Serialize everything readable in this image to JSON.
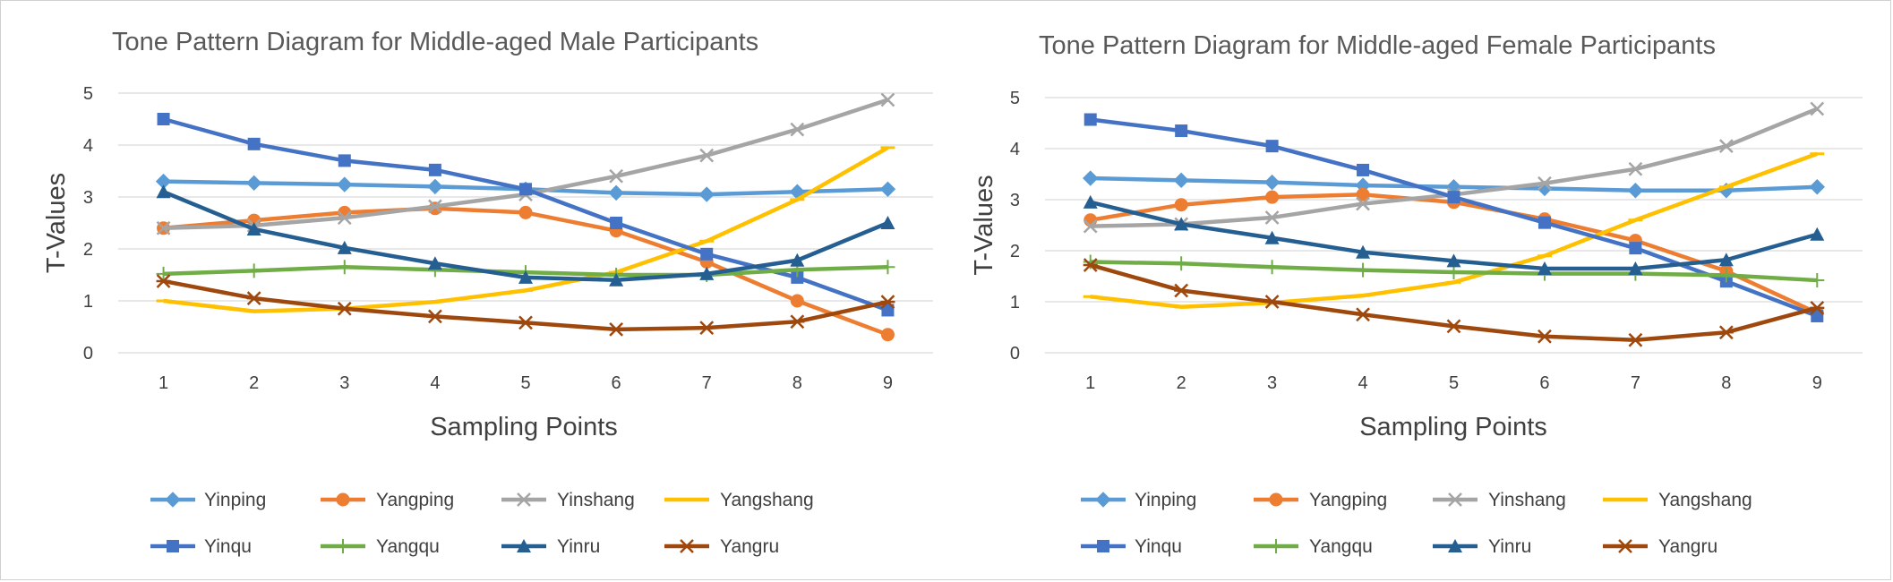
{
  "chart_data": [
    {
      "type": "line",
      "title": "Tone Pattern Diagram for Middle-aged Male  Participants",
      "xlabel": "Sampling Points",
      "ylabel": "T-Values",
      "x": [
        "1",
        "2",
        "3",
        "4",
        "5",
        "6",
        "7",
        "8",
        "9"
      ],
      "ylim": [
        0,
        5
      ],
      "yticks": [
        "0",
        "1",
        "2",
        "3",
        "4",
        "5"
      ],
      "grid": true,
      "legend": "bottom",
      "series": [
        {
          "name": "Yinping",
          "color": "#5b9bd5",
          "marker": "diamond",
          "values": [
            3.3,
            3.27,
            3.24,
            3.2,
            3.15,
            3.08,
            3.05,
            3.1,
            3.15
          ]
        },
        {
          "name": "Yangping",
          "color": "#ed7d31",
          "marker": "circle",
          "values": [
            2.4,
            2.55,
            2.7,
            2.78,
            2.7,
            2.35,
            1.75,
            1.0,
            0.35
          ]
        },
        {
          "name": "Yinshang",
          "color": "#a5a5a5",
          "marker": "x",
          "values": [
            2.4,
            2.45,
            2.6,
            2.82,
            3.05,
            3.4,
            3.8,
            4.3,
            4.87
          ]
        },
        {
          "name": "Yangshang",
          "color": "#ffc000",
          "marker": "dash",
          "values": [
            1.0,
            0.8,
            0.85,
            0.98,
            1.2,
            1.55,
            2.15,
            2.95,
            3.95
          ]
        },
        {
          "name": "Yinqu",
          "color": "#4472c4",
          "marker": "square",
          "values": [
            4.5,
            4.02,
            3.7,
            3.52,
            3.15,
            2.5,
            1.9,
            1.45,
            0.82
          ]
        },
        {
          "name": "Yangqu",
          "color": "#70ad47",
          "marker": "plus",
          "values": [
            1.52,
            1.58,
            1.65,
            1.6,
            1.55,
            1.5,
            1.5,
            1.6,
            1.65
          ]
        },
        {
          "name": "Yinru",
          "color": "#255e91",
          "marker": "triangle",
          "values": [
            3.1,
            2.38,
            2.02,
            1.72,
            1.45,
            1.4,
            1.52,
            1.78,
            2.5
          ]
        },
        {
          "name": "Yangru",
          "color": "#9e480e",
          "marker": "star",
          "values": [
            1.38,
            1.05,
            0.85,
            0.7,
            0.58,
            0.45,
            0.48,
            0.6,
            0.98
          ]
        }
      ]
    },
    {
      "type": "line",
      "title": "Tone Pattern Diagram for Middle-aged  Female  Participants",
      "xlabel": "Sampling Points",
      "ylabel": "T-Values",
      "x": [
        "1",
        "2",
        "3",
        "4",
        "5",
        "6",
        "7",
        "8",
        "9"
      ],
      "ylim": [
        0,
        5
      ],
      "yticks": [
        "0",
        "1",
        "2",
        "3",
        "4",
        "5"
      ],
      "grid": true,
      "legend": "bottom",
      "series": [
        {
          "name": "Yinping",
          "color": "#5b9bd5",
          "marker": "diamond",
          "values": [
            3.42,
            3.38,
            3.34,
            3.28,
            3.25,
            3.22,
            3.18,
            3.18,
            3.25
          ]
        },
        {
          "name": "Yangping",
          "color": "#ed7d31",
          "marker": "circle",
          "values": [
            2.6,
            2.9,
            3.05,
            3.1,
            2.95,
            2.62,
            2.2,
            1.6,
            0.78
          ]
        },
        {
          "name": "Yinshang",
          "color": "#a5a5a5",
          "marker": "x",
          "values": [
            2.48,
            2.52,
            2.65,
            2.92,
            3.1,
            3.32,
            3.6,
            4.05,
            4.78
          ]
        },
        {
          "name": "Yangshang",
          "color": "#ffc000",
          "marker": "dash",
          "values": [
            1.1,
            0.9,
            0.98,
            1.12,
            1.38,
            1.9,
            2.6,
            3.25,
            3.9
          ]
        },
        {
          "name": "Yinqu",
          "color": "#4472c4",
          "marker": "square",
          "values": [
            4.57,
            4.35,
            4.05,
            3.58,
            3.05,
            2.55,
            2.05,
            1.4,
            0.72
          ]
        },
        {
          "name": "Yangqu",
          "color": "#70ad47",
          "marker": "plus",
          "values": [
            1.78,
            1.75,
            1.68,
            1.62,
            1.58,
            1.55,
            1.55,
            1.52,
            1.42
          ]
        },
        {
          "name": "Yinru",
          "color": "#255e91",
          "marker": "triangle",
          "values": [
            2.95,
            2.52,
            2.25,
            1.97,
            1.8,
            1.65,
            1.65,
            1.82,
            2.32
          ]
        },
        {
          "name": "Yangru",
          "color": "#9e480e",
          "marker": "star",
          "values": [
            1.72,
            1.22,
            1.0,
            0.75,
            0.52,
            0.32,
            0.25,
            0.4,
            0.88
          ]
        }
      ]
    }
  ]
}
